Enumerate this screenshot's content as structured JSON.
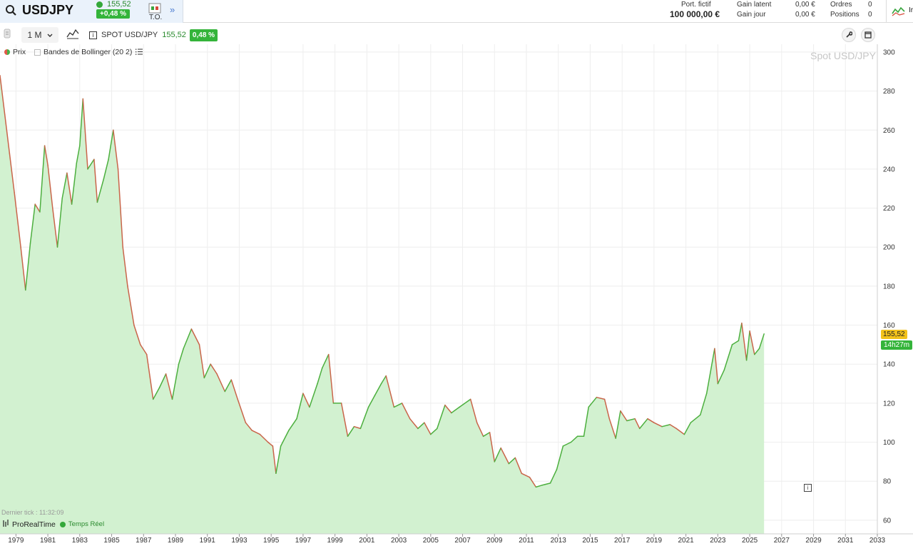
{
  "topbar": {
    "symbol": "USDJPY",
    "price": "155,52",
    "change": "+0,48 %",
    "to_label": "T.O.",
    "port_label": "Port. fictif",
    "port_value": "100 000,00 €",
    "gain_latent_label": "Gain latent",
    "gain_latent_value": "0,00 €",
    "gain_jour_label": "Gain jour",
    "gain_jour_value": "0,00 €",
    "ordres_label": "Ordres",
    "ordres_value": "0",
    "positions_label": "Positions",
    "positions_value": "0",
    "right_fragment": "Ir"
  },
  "toolbar": {
    "period": "1 M",
    "instrument": "SPOT USD/JPY",
    "price": "155,52",
    "change": "0,48 %"
  },
  "legend": {
    "prix": "Prix",
    "bollinger": "Bandes de Bollinger (20 2)"
  },
  "watermark": "Spot USD/JPY",
  "price_tag": "155,52",
  "time_tag": "14h27m",
  "footer": {
    "last_tick": "Dernier tick : 11:32:09",
    "brand": "ProRealTime",
    "realtime": "Temps Réel"
  },
  "colors": {
    "up_line": "#4caf3e",
    "down_line": "#c9654a",
    "area_fill": "#d2f1d0",
    "accent_green": "#34b43a",
    "price_tag_bg": "#f2c21b"
  },
  "chart_data": {
    "type": "area",
    "series": [
      {
        "name": "Prix",
        "points": [
          [
            1978.0,
            288
          ],
          [
            1978.3,
            268
          ],
          [
            1978.6,
            248
          ],
          [
            1978.9,
            228
          ],
          [
            1979.3,
            200
          ],
          [
            1979.6,
            178
          ],
          [
            1979.9,
            202
          ],
          [
            1980.2,
            222
          ],
          [
            1980.5,
            218
          ],
          [
            1980.8,
            252
          ],
          [
            1981.0,
            242
          ],
          [
            1981.3,
            220
          ],
          [
            1981.6,
            200
          ],
          [
            1981.9,
            225
          ],
          [
            1982.2,
            238
          ],
          [
            1982.5,
            222
          ],
          [
            1982.8,
            243
          ],
          [
            1983.0,
            252
          ],
          [
            1983.2,
            276
          ],
          [
            1983.5,
            240
          ],
          [
            1983.9,
            245
          ],
          [
            1984.1,
            223
          ],
          [
            1984.5,
            235
          ],
          [
            1984.8,
            245
          ],
          [
            1985.1,
            260
          ],
          [
            1985.4,
            240
          ],
          [
            1985.7,
            200
          ],
          [
            1986.0,
            180
          ],
          [
            1986.4,
            160
          ],
          [
            1986.8,
            150
          ],
          [
            1987.2,
            145
          ],
          [
            1987.6,
            122
          ],
          [
            1988.0,
            128
          ],
          [
            1988.4,
            135
          ],
          [
            1988.8,
            122
          ],
          [
            1989.2,
            140
          ],
          [
            1989.5,
            148
          ],
          [
            1990.0,
            158
          ],
          [
            1990.5,
            150
          ],
          [
            1990.8,
            133
          ],
          [
            1991.2,
            140
          ],
          [
            1991.6,
            135
          ],
          [
            1992.1,
            126
          ],
          [
            1992.5,
            132
          ],
          [
            1992.9,
            122
          ],
          [
            1993.4,
            110
          ],
          [
            1993.8,
            106
          ],
          [
            1994.3,
            104
          ],
          [
            1994.8,
            100
          ],
          [
            1995.1,
            98
          ],
          [
            1995.3,
            84
          ],
          [
            1995.6,
            98
          ],
          [
            1996.1,
            106
          ],
          [
            1996.6,
            112
          ],
          [
            1997.0,
            125
          ],
          [
            1997.4,
            118
          ],
          [
            1997.9,
            130
          ],
          [
            1998.2,
            138
          ],
          [
            1998.6,
            145
          ],
          [
            1998.9,
            120
          ],
          [
            1999.4,
            120
          ],
          [
            1999.8,
            103
          ],
          [
            2000.2,
            108
          ],
          [
            2000.6,
            107
          ],
          [
            2001.1,
            118
          ],
          [
            2001.5,
            124
          ],
          [
            2001.9,
            130
          ],
          [
            2002.2,
            134
          ],
          [
            2002.7,
            118
          ],
          [
            2003.2,
            120
          ],
          [
            2003.7,
            112
          ],
          [
            2004.2,
            107
          ],
          [
            2004.6,
            110
          ],
          [
            2005.0,
            104
          ],
          [
            2005.4,
            107
          ],
          [
            2005.9,
            119
          ],
          [
            2006.3,
            115
          ],
          [
            2006.8,
            118
          ],
          [
            2007.5,
            122
          ],
          [
            2007.9,
            110
          ],
          [
            2008.3,
            103
          ],
          [
            2008.7,
            105
          ],
          [
            2009.0,
            90
          ],
          [
            2009.4,
            97
          ],
          [
            2009.9,
            89
          ],
          [
            2010.3,
            92
          ],
          [
            2010.7,
            84
          ],
          [
            2011.2,
            82
          ],
          [
            2011.6,
            77
          ],
          [
            2012.0,
            78
          ],
          [
            2012.5,
            79
          ],
          [
            2012.9,
            86
          ],
          [
            2013.3,
            98
          ],
          [
            2013.8,
            100
          ],
          [
            2014.2,
            103
          ],
          [
            2014.6,
            103
          ],
          [
            2014.9,
            118
          ],
          [
            2015.4,
            123
          ],
          [
            2015.9,
            122
          ],
          [
            2016.2,
            112
          ],
          [
            2016.6,
            102
          ],
          [
            2016.9,
            116
          ],
          [
            2017.3,
            111
          ],
          [
            2017.8,
            112
          ],
          [
            2018.1,
            107
          ],
          [
            2018.6,
            112
          ],
          [
            2019.0,
            110
          ],
          [
            2019.5,
            108
          ],
          [
            2020.0,
            109
          ],
          [
            2020.4,
            107
          ],
          [
            2020.9,
            104
          ],
          [
            2021.3,
            110
          ],
          [
            2021.9,
            114
          ],
          [
            2022.3,
            125
          ],
          [
            2022.8,
            148
          ],
          [
            2023.0,
            130
          ],
          [
            2023.4,
            137
          ],
          [
            2023.9,
            150
          ],
          [
            2024.3,
            152
          ],
          [
            2024.5,
            161
          ],
          [
            2024.8,
            142
          ],
          [
            2025.0,
            157
          ],
          [
            2025.3,
            145
          ],
          [
            2025.6,
            148
          ],
          [
            2025.9,
            155.52
          ]
        ]
      }
    ],
    "x_ticks": [
      1979,
      1981,
      1983,
      1985,
      1987,
      1989,
      1991,
      1993,
      1995,
      1997,
      1999,
      2001,
      2003,
      2005,
      2007,
      2009,
      2011,
      2013,
      2015,
      2017,
      2019,
      2021,
      2023,
      2025,
      2027,
      2029,
      2031,
      2033
    ],
    "y_ticks": [
      60,
      80,
      100,
      120,
      140,
      160,
      180,
      200,
      220,
      240,
      260,
      280,
      300
    ],
    "xlim": [
      1978.0,
      2033.0
    ],
    "ylim": [
      53,
      304
    ],
    "grid": true
  }
}
